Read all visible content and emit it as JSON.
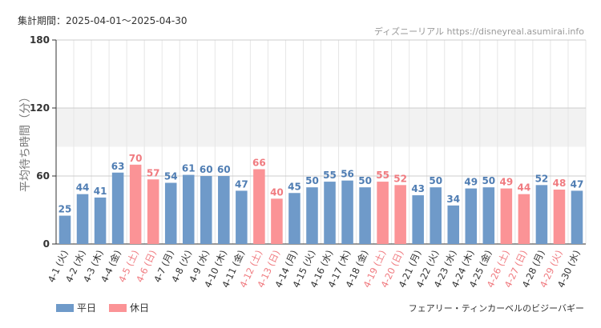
{
  "header": {
    "period": "集計期間：2025-04-01～2025-04-30",
    "source": "ディズニーリアル https://disneyreal.asumirai.info"
  },
  "footer": {
    "attraction": "フェアリー・ティンカーベルのビジーバギー"
  },
  "colors": {
    "weekday": "#6f9ac9",
    "holiday": "#fb9396",
    "weekday_text": "#4f7db3",
    "holiday_text": "#f07b80",
    "band": "#f2f2f2"
  },
  "chart_data": {
    "type": "bar",
    "ylabel": "平均待ち時間（分）",
    "ylim": [
      0,
      180
    ],
    "yticks": [
      0,
      60,
      120,
      180
    ],
    "grid": true,
    "legend_position": "bottom-left",
    "legend": [
      {
        "key": "weekday",
        "label": "平日"
      },
      {
        "key": "holiday",
        "label": "休日"
      }
    ],
    "categories": [
      "4-1 (火)",
      "4-2 (水)",
      "4-3 (木)",
      "4-4 (金)",
      "4-5 (土)",
      "4-6 (日)",
      "4-7 (月)",
      "4-8 (火)",
      "4-9 (水)",
      "4-10 (木)",
      "4-11 (金)",
      "4-12 (土)",
      "4-13 (日)",
      "4-14 (月)",
      "4-15 (火)",
      "4-16 (水)",
      "4-17 (木)",
      "4-18 (金)",
      "4-19 (土)",
      "4-20 (日)",
      "4-21 (月)",
      "4-22 (火)",
      "4-23 (水)",
      "4-24 (木)",
      "4-25 (金)",
      "4-26 (土)",
      "4-27 (日)",
      "4-28 (月)",
      "4-29 (火)",
      "4-30 (水)"
    ],
    "values": [
      25,
      44,
      41,
      63,
      70,
      57,
      54,
      61,
      60,
      60,
      47,
      66,
      40,
      45,
      50,
      55,
      56,
      50,
      55,
      52,
      43,
      50,
      34,
      49,
      50,
      49,
      44,
      52,
      48,
      47
    ],
    "day_type": [
      "weekday",
      "weekday",
      "weekday",
      "weekday",
      "holiday",
      "holiday",
      "weekday",
      "weekday",
      "weekday",
      "weekday",
      "weekday",
      "holiday",
      "holiday",
      "weekday",
      "weekday",
      "weekday",
      "weekday",
      "weekday",
      "holiday",
      "holiday",
      "weekday",
      "weekday",
      "weekday",
      "weekday",
      "weekday",
      "holiday",
      "holiday",
      "weekday",
      "holiday",
      "weekday"
    ]
  }
}
